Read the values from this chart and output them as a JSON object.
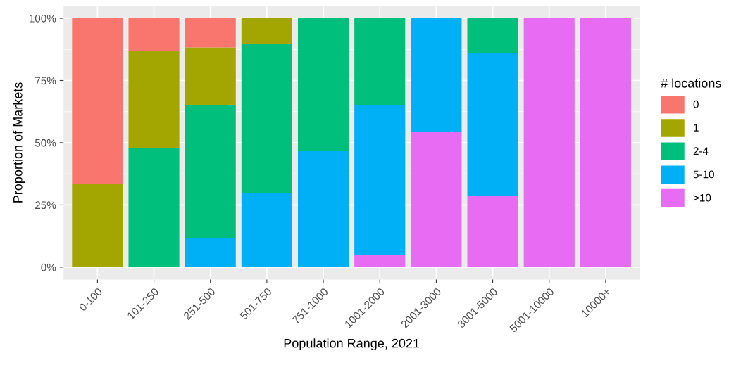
{
  "chart_data": {
    "type": "bar",
    "stacked": true,
    "xlabel": "Population Range, 2021",
    "ylabel": "Proportion of Markets",
    "legend_title": "# locations",
    "categories": [
      "0-100",
      "101-250",
      "251-500",
      "501-750",
      "751-1000",
      "1001-2000",
      "2001-3000",
      "3001-5000",
      "5001-10000",
      "10000+"
    ],
    "series": [
      {
        "name": ">10",
        "color": "#e76bf3",
        "values": [
          null,
          null,
          null,
          null,
          null,
          4.9,
          54.5,
          28.5,
          100,
          100
        ]
      },
      {
        "name": "5-10",
        "color": "#00b0f6",
        "values": [
          null,
          null,
          11.7,
          29.9,
          46.6,
          60.3,
          45.5,
          57.4,
          null,
          null
        ]
      },
      {
        "name": "2-4",
        "color": "#00bf7d",
        "values": [
          null,
          48.0,
          53.5,
          59.9,
          53.4,
          34.8,
          null,
          14.1,
          null,
          null
        ]
      },
      {
        "name": "1",
        "color": "#a3a500",
        "values": [
          33.3,
          38.8,
          23.1,
          10.2,
          null,
          null,
          null,
          null,
          null,
          null
        ]
      },
      {
        "name": "0",
        "color": "#f8766d",
        "values": [
          66.7,
          13.2,
          11.7,
          null,
          null,
          null,
          null,
          null,
          null,
          null
        ]
      }
    ],
    "ylim": [
      -5,
      105
    ],
    "yticks": [
      {
        "value": 0,
        "label": "0%"
      },
      {
        "value": 25,
        "label": "25%"
      },
      {
        "value": 50,
        "label": "50%"
      },
      {
        "value": 75,
        "label": "75%"
      },
      {
        "value": 100,
        "label": "100%"
      }
    ],
    "grid": true,
    "legend": "right"
  }
}
